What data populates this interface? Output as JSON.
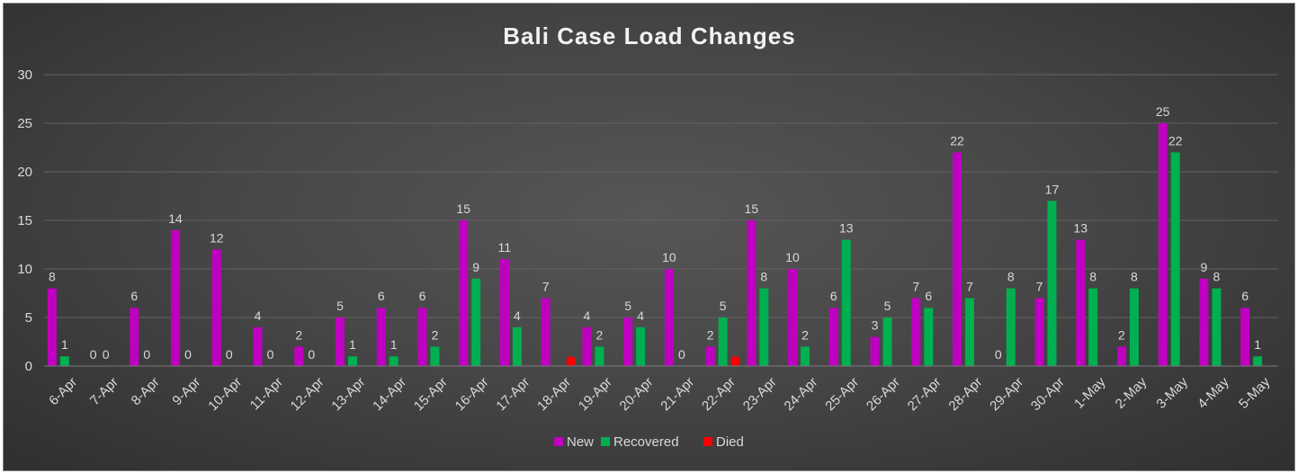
{
  "chart_data": {
    "type": "bar",
    "title": "Bali Case Load Changes",
    "xlabel": "",
    "ylabel": "",
    "ylim": [
      0,
      30
    ],
    "yticks": [
      0,
      5,
      10,
      15,
      20,
      25,
      30
    ],
    "grid": true,
    "legend_position": "bottom",
    "categories": [
      "6-Apr",
      "7-Apr",
      "8-Apr",
      "9-Apr",
      "10-Apr",
      "11-Apr",
      "12-Apr",
      "13-Apr",
      "14-Apr",
      "15-Apr",
      "16-Apr",
      "17-Apr",
      "18-Apr",
      "19-Apr",
      "20-Apr",
      "21-Apr",
      "22-Apr",
      "23-Apr",
      "24-Apr",
      "25-Apr",
      "26-Apr",
      "27-Apr",
      "28-Apr",
      "29-Apr",
      "30-Apr",
      "1-May",
      "2-May",
      "3-May",
      "4-May",
      "5-May"
    ],
    "series": [
      {
        "name": "New",
        "color": "#c000c0",
        "values": [
          8,
          0,
          6,
          14,
          12,
          4,
          2,
          5,
          6,
          6,
          15,
          11,
          7,
          4,
          5,
          10,
          2,
          15,
          10,
          6,
          3,
          7,
          22,
          0,
          7,
          13,
          2,
          25,
          9,
          6
        ],
        "labels": [
          "8",
          "0",
          "6",
          "14",
          "12",
          "4",
          "2",
          "5",
          "6",
          "6",
          "15",
          "11",
          "7",
          "4",
          "5",
          "10",
          "2",
          "15",
          "10",
          "6",
          "3",
          "7",
          "22",
          "0",
          "7",
          "13",
          "2",
          "25",
          "9",
          "6"
        ]
      },
      {
        "name": "Recovered",
        "color": "#00b050",
        "values": [
          1,
          0,
          0,
          0,
          0,
          0,
          0,
          1,
          1,
          2,
          9,
          4,
          0,
          2,
          4,
          0,
          5,
          8,
          2,
          13,
          5,
          6,
          7,
          8,
          17,
          8,
          8,
          22,
          8,
          1
        ],
        "labels": [
          "1",
          "0",
          "0",
          "0",
          "0",
          "0",
          "0",
          "1",
          "1",
          "2",
          "9",
          "4",
          "",
          "2",
          "4",
          "0",
          "5",
          "8",
          "2",
          "13",
          "5",
          "6",
          "7",
          "8",
          "17",
          "8",
          "8",
          "22",
          "8",
          "1"
        ]
      },
      {
        "name": "Died",
        "color": "#ff0000",
        "values": [
          0,
          0,
          0,
          0,
          0,
          0,
          0,
          0,
          0,
          0,
          0,
          0,
          1,
          0,
          0,
          0,
          1,
          0,
          0,
          0,
          0,
          0,
          0,
          0,
          0,
          0,
          0,
          0,
          0,
          0
        ],
        "labels": [
          "",
          "",
          "",
          "",
          "",
          "",
          "",
          "",
          "",
          "",
          "",
          "",
          "",
          "",
          "",
          "",
          "",
          "",
          "",
          "",
          "",
          "",
          "",
          "",
          "",
          "",
          "",
          "",
          "",
          ""
        ]
      }
    ]
  }
}
